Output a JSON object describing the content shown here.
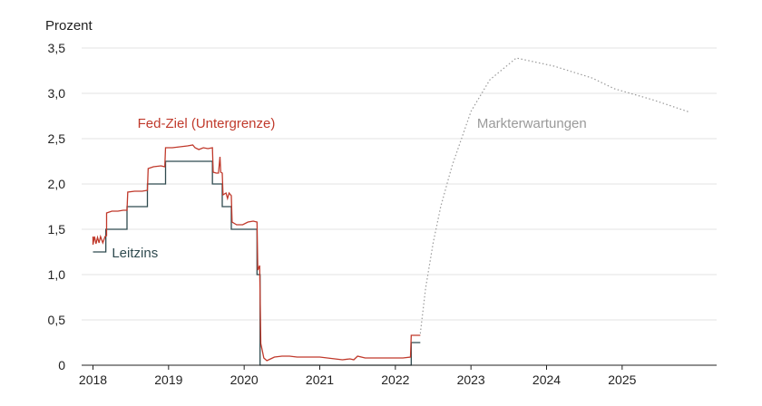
{
  "chart_data": {
    "type": "line",
    "ylabel": "Prozent",
    "ylim": [
      0,
      3.5
    ],
    "yticks": [
      "0",
      "0,5",
      "1,0",
      "1,5",
      "2,0",
      "2,5",
      "3,0",
      "3,5"
    ],
    "ytick_values": [
      0,
      0.5,
      1.0,
      1.5,
      2.0,
      2.5,
      3.0,
      3.5
    ],
    "xlim": [
      2017.85,
      2026.25
    ],
    "xticks": [
      "2018",
      "2019",
      "2020",
      "2021",
      "2022",
      "2023",
      "2024",
      "2025"
    ],
    "xtick_values": [
      2018,
      2019,
      2020,
      2021,
      2022,
      2023,
      2024,
      2025
    ],
    "grid": true,
    "series": [
      {
        "name": "Leitzins",
        "color": "#2f4a4f",
        "style": "step",
        "points": [
          [
            2018.0,
            1.25
          ],
          [
            2018.17,
            1.25
          ],
          [
            2018.17,
            1.5
          ],
          [
            2018.45,
            1.5
          ],
          [
            2018.45,
            1.75
          ],
          [
            2018.72,
            1.75
          ],
          [
            2018.72,
            2.0
          ],
          [
            2018.96,
            2.0
          ],
          [
            2018.96,
            2.25
          ],
          [
            2019.58,
            2.25
          ],
          [
            2019.58,
            2.0
          ],
          [
            2019.71,
            2.0
          ],
          [
            2019.71,
            1.75
          ],
          [
            2019.83,
            1.75
          ],
          [
            2019.83,
            1.5
          ],
          [
            2020.17,
            1.5
          ],
          [
            2020.17,
            1.0
          ],
          [
            2020.21,
            1.0
          ],
          [
            2020.21,
            0.0
          ],
          [
            2022.21,
            0.0
          ],
          [
            2022.21,
            0.25
          ],
          [
            2022.33,
            0.25
          ]
        ]
      },
      {
        "name": "Fed-Ziel (Untergrenze)",
        "color": "#c0392b",
        "style": "line",
        "points": [
          [
            2018.0,
            1.42
          ],
          [
            2018.0,
            1.33
          ],
          [
            2018.02,
            1.42
          ],
          [
            2018.04,
            1.34
          ],
          [
            2018.06,
            1.41
          ],
          [
            2018.08,
            1.35
          ],
          [
            2018.1,
            1.42
          ],
          [
            2018.13,
            1.35
          ],
          [
            2018.16,
            1.42
          ],
          [
            2018.18,
            1.43
          ],
          [
            2018.18,
            1.68
          ],
          [
            2018.25,
            1.7
          ],
          [
            2018.33,
            1.7
          ],
          [
            2018.4,
            1.71
          ],
          [
            2018.45,
            1.71
          ],
          [
            2018.46,
            1.91
          ],
          [
            2018.55,
            1.92
          ],
          [
            2018.65,
            1.92
          ],
          [
            2018.72,
            1.93
          ],
          [
            2018.73,
            2.17
          ],
          [
            2018.8,
            2.19
          ],
          [
            2018.9,
            2.2
          ],
          [
            2018.95,
            2.19
          ],
          [
            2018.96,
            2.4
          ],
          [
            2019.05,
            2.4
          ],
          [
            2019.15,
            2.41
          ],
          [
            2019.25,
            2.42
          ],
          [
            2019.32,
            2.43
          ],
          [
            2019.35,
            2.4
          ],
          [
            2019.4,
            2.38
          ],
          [
            2019.46,
            2.4
          ],
          [
            2019.52,
            2.39
          ],
          [
            2019.58,
            2.4
          ],
          [
            2019.59,
            2.13
          ],
          [
            2019.63,
            2.12
          ],
          [
            2019.66,
            2.12
          ],
          [
            2019.68,
            2.3
          ],
          [
            2019.69,
            2.13
          ],
          [
            2019.71,
            2.12
          ],
          [
            2019.72,
            1.88
          ],
          [
            2019.76,
            1.9
          ],
          [
            2019.78,
            1.84
          ],
          [
            2019.8,
            1.9
          ],
          [
            2019.83,
            1.87
          ],
          [
            2019.84,
            1.58
          ],
          [
            2019.9,
            1.55
          ],
          [
            2019.98,
            1.55
          ],
          [
            2020.05,
            1.58
          ],
          [
            2020.12,
            1.59
          ],
          [
            2020.17,
            1.58
          ],
          [
            2020.18,
            1.05
          ],
          [
            2020.205,
            1.1
          ],
          [
            2020.22,
            0.24
          ],
          [
            2020.26,
            0.08
          ],
          [
            2020.3,
            0.05
          ],
          [
            2020.35,
            0.07
          ],
          [
            2020.4,
            0.09
          ],
          [
            2020.5,
            0.1
          ],
          [
            2020.6,
            0.1
          ],
          [
            2020.7,
            0.09
          ],
          [
            2020.8,
            0.09
          ],
          [
            2020.9,
            0.09
          ],
          [
            2021.0,
            0.09
          ],
          [
            2021.1,
            0.08
          ],
          [
            2021.2,
            0.07
          ],
          [
            2021.3,
            0.06
          ],
          [
            2021.4,
            0.07
          ],
          [
            2021.45,
            0.06
          ],
          [
            2021.5,
            0.1
          ],
          [
            2021.6,
            0.08
          ],
          [
            2021.7,
            0.08
          ],
          [
            2021.8,
            0.08
          ],
          [
            2021.9,
            0.08
          ],
          [
            2022.0,
            0.08
          ],
          [
            2022.1,
            0.08
          ],
          [
            2022.2,
            0.09
          ],
          [
            2022.21,
            0.33
          ],
          [
            2022.33,
            0.33
          ]
        ]
      },
      {
        "name": "Markterwartungen",
        "color": "#9a9a9a",
        "style": "dotted",
        "points": [
          [
            2022.33,
            0.35
          ],
          [
            2022.4,
            0.85
          ],
          [
            2022.5,
            1.35
          ],
          [
            2022.6,
            1.75
          ],
          [
            2022.75,
            2.2
          ],
          [
            2023.0,
            2.8
          ],
          [
            2023.25,
            3.15
          ],
          [
            2023.6,
            3.39
          ],
          [
            2024.1,
            3.3
          ],
          [
            2024.6,
            3.17
          ],
          [
            2024.9,
            3.05
          ],
          [
            2025.4,
            2.93
          ],
          [
            2025.9,
            2.79
          ]
        ]
      }
    ],
    "labels": [
      {
        "text": "Fed-Ziel (Untergrenze)",
        "x": 2019.5,
        "y": 2.62,
        "anchor": "middle",
        "color": "#c0392b"
      },
      {
        "text": "Leitzins",
        "x": 2018.25,
        "y": 1.19,
        "anchor": "start",
        "color": "#2f4a4f"
      },
      {
        "text": "Markterwartungen",
        "x": 2023.08,
        "y": 2.62,
        "anchor": "start",
        "color": "#9a9a9a"
      }
    ]
  }
}
